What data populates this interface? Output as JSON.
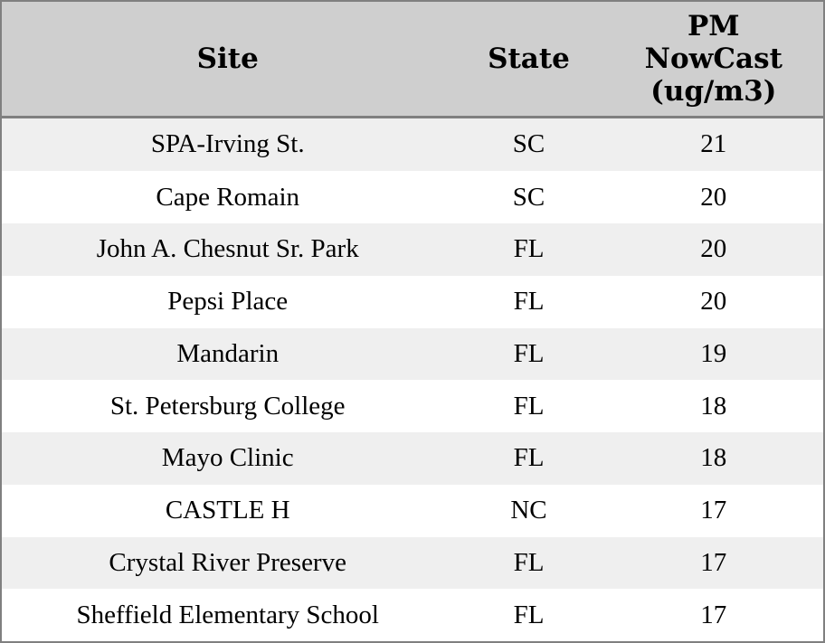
{
  "chart_data": {
    "type": "table",
    "title": "",
    "columns": [
      "Site",
      "State",
      "PM NowCast (ug/m3)"
    ],
    "rows": [
      {
        "site": "SPA-Irving St.",
        "state": "SC",
        "pm_nowcast": "21"
      },
      {
        "site": "Cape Romain",
        "state": "SC",
        "pm_nowcast": "20"
      },
      {
        "site": "John A. Chesnut Sr. Park",
        "state": "FL",
        "pm_nowcast": "20"
      },
      {
        "site": "Pepsi Place",
        "state": "FL",
        "pm_nowcast": "20"
      },
      {
        "site": "Mandarin",
        "state": "FL",
        "pm_nowcast": "19"
      },
      {
        "site": "St. Petersburg College",
        "state": "FL",
        "pm_nowcast": "18"
      },
      {
        "site": "Mayo Clinic",
        "state": "FL",
        "pm_nowcast": "18"
      },
      {
        "site": "CASTLE H",
        "state": "NC",
        "pm_nowcast": "17"
      },
      {
        "site": "Crystal River Preserve",
        "state": "FL",
        "pm_nowcast": "17"
      },
      {
        "site": "Sheffield Elementary School",
        "state": "FL",
        "pm_nowcast": "17"
      }
    ],
    "layout": {
      "striped": true,
      "stripe_start": "first-row-shaded",
      "column_alignment": [
        "center",
        "center",
        "center"
      ]
    }
  },
  "header": {
    "site_label": "Site",
    "state_label": "State",
    "pm_label": "PM\nNowCast\n(ug/m3)"
  },
  "colors": {
    "header_bg": "#cfcfcf",
    "row_stripe": "#efefef",
    "row_plain": "#ffffff",
    "border": "#808080",
    "text": "#000000"
  }
}
